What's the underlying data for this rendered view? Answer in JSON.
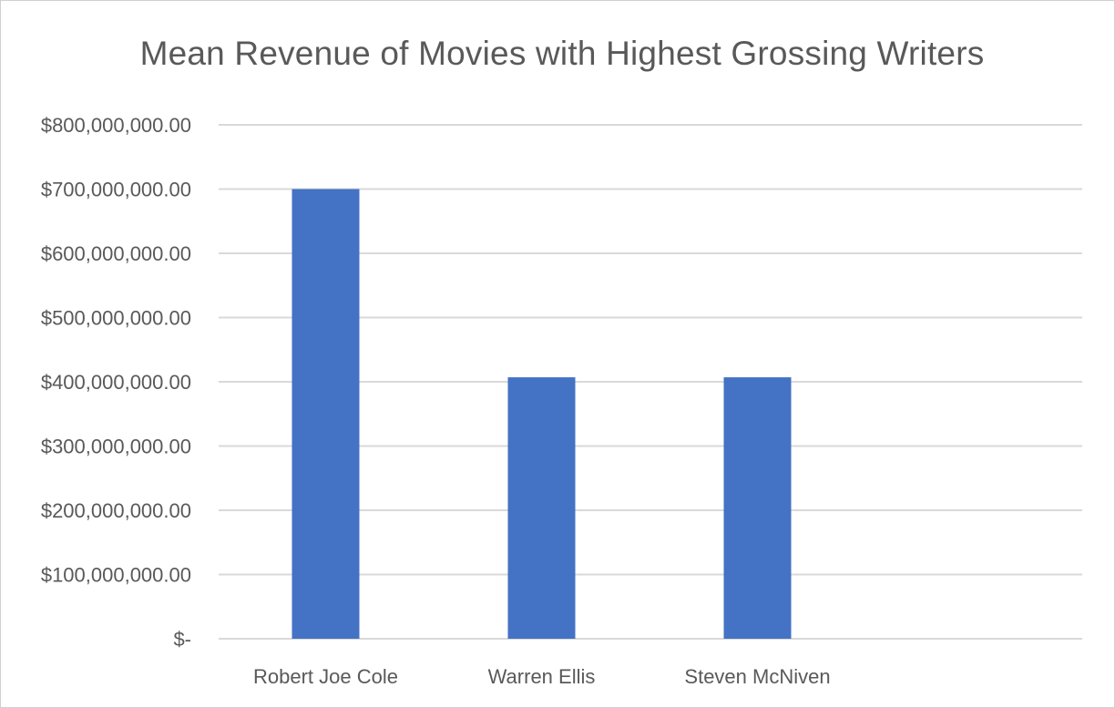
{
  "chart_data": {
    "type": "bar",
    "title": "Mean Revenue of Movies with Highest Grossing Writers",
    "xlabel": "",
    "ylabel": "",
    "categories": [
      "Robert Joe Cole",
      "Warren Ellis",
      "Steven McNiven"
    ],
    "values": [
      700000000,
      407000000,
      407000000
    ],
    "ylim": [
      0,
      800000000
    ],
    "yticks": [
      0,
      100000000,
      200000000,
      300000000,
      400000000,
      500000000,
      600000000,
      700000000,
      800000000
    ],
    "ytick_labels": [
      "$-",
      "$100,000,000.00",
      "$200,000,000.00",
      "$300,000,000.00",
      "$400,000,000.00",
      "$500,000,000.00",
      "$600,000,000.00",
      "$700,000,000.00",
      "$800,000,000.00"
    ],
    "grid": true,
    "legend": "none",
    "bar_color": "#4472C4",
    "grid_color": "#d9d9d9",
    "text_color": "#595959"
  }
}
